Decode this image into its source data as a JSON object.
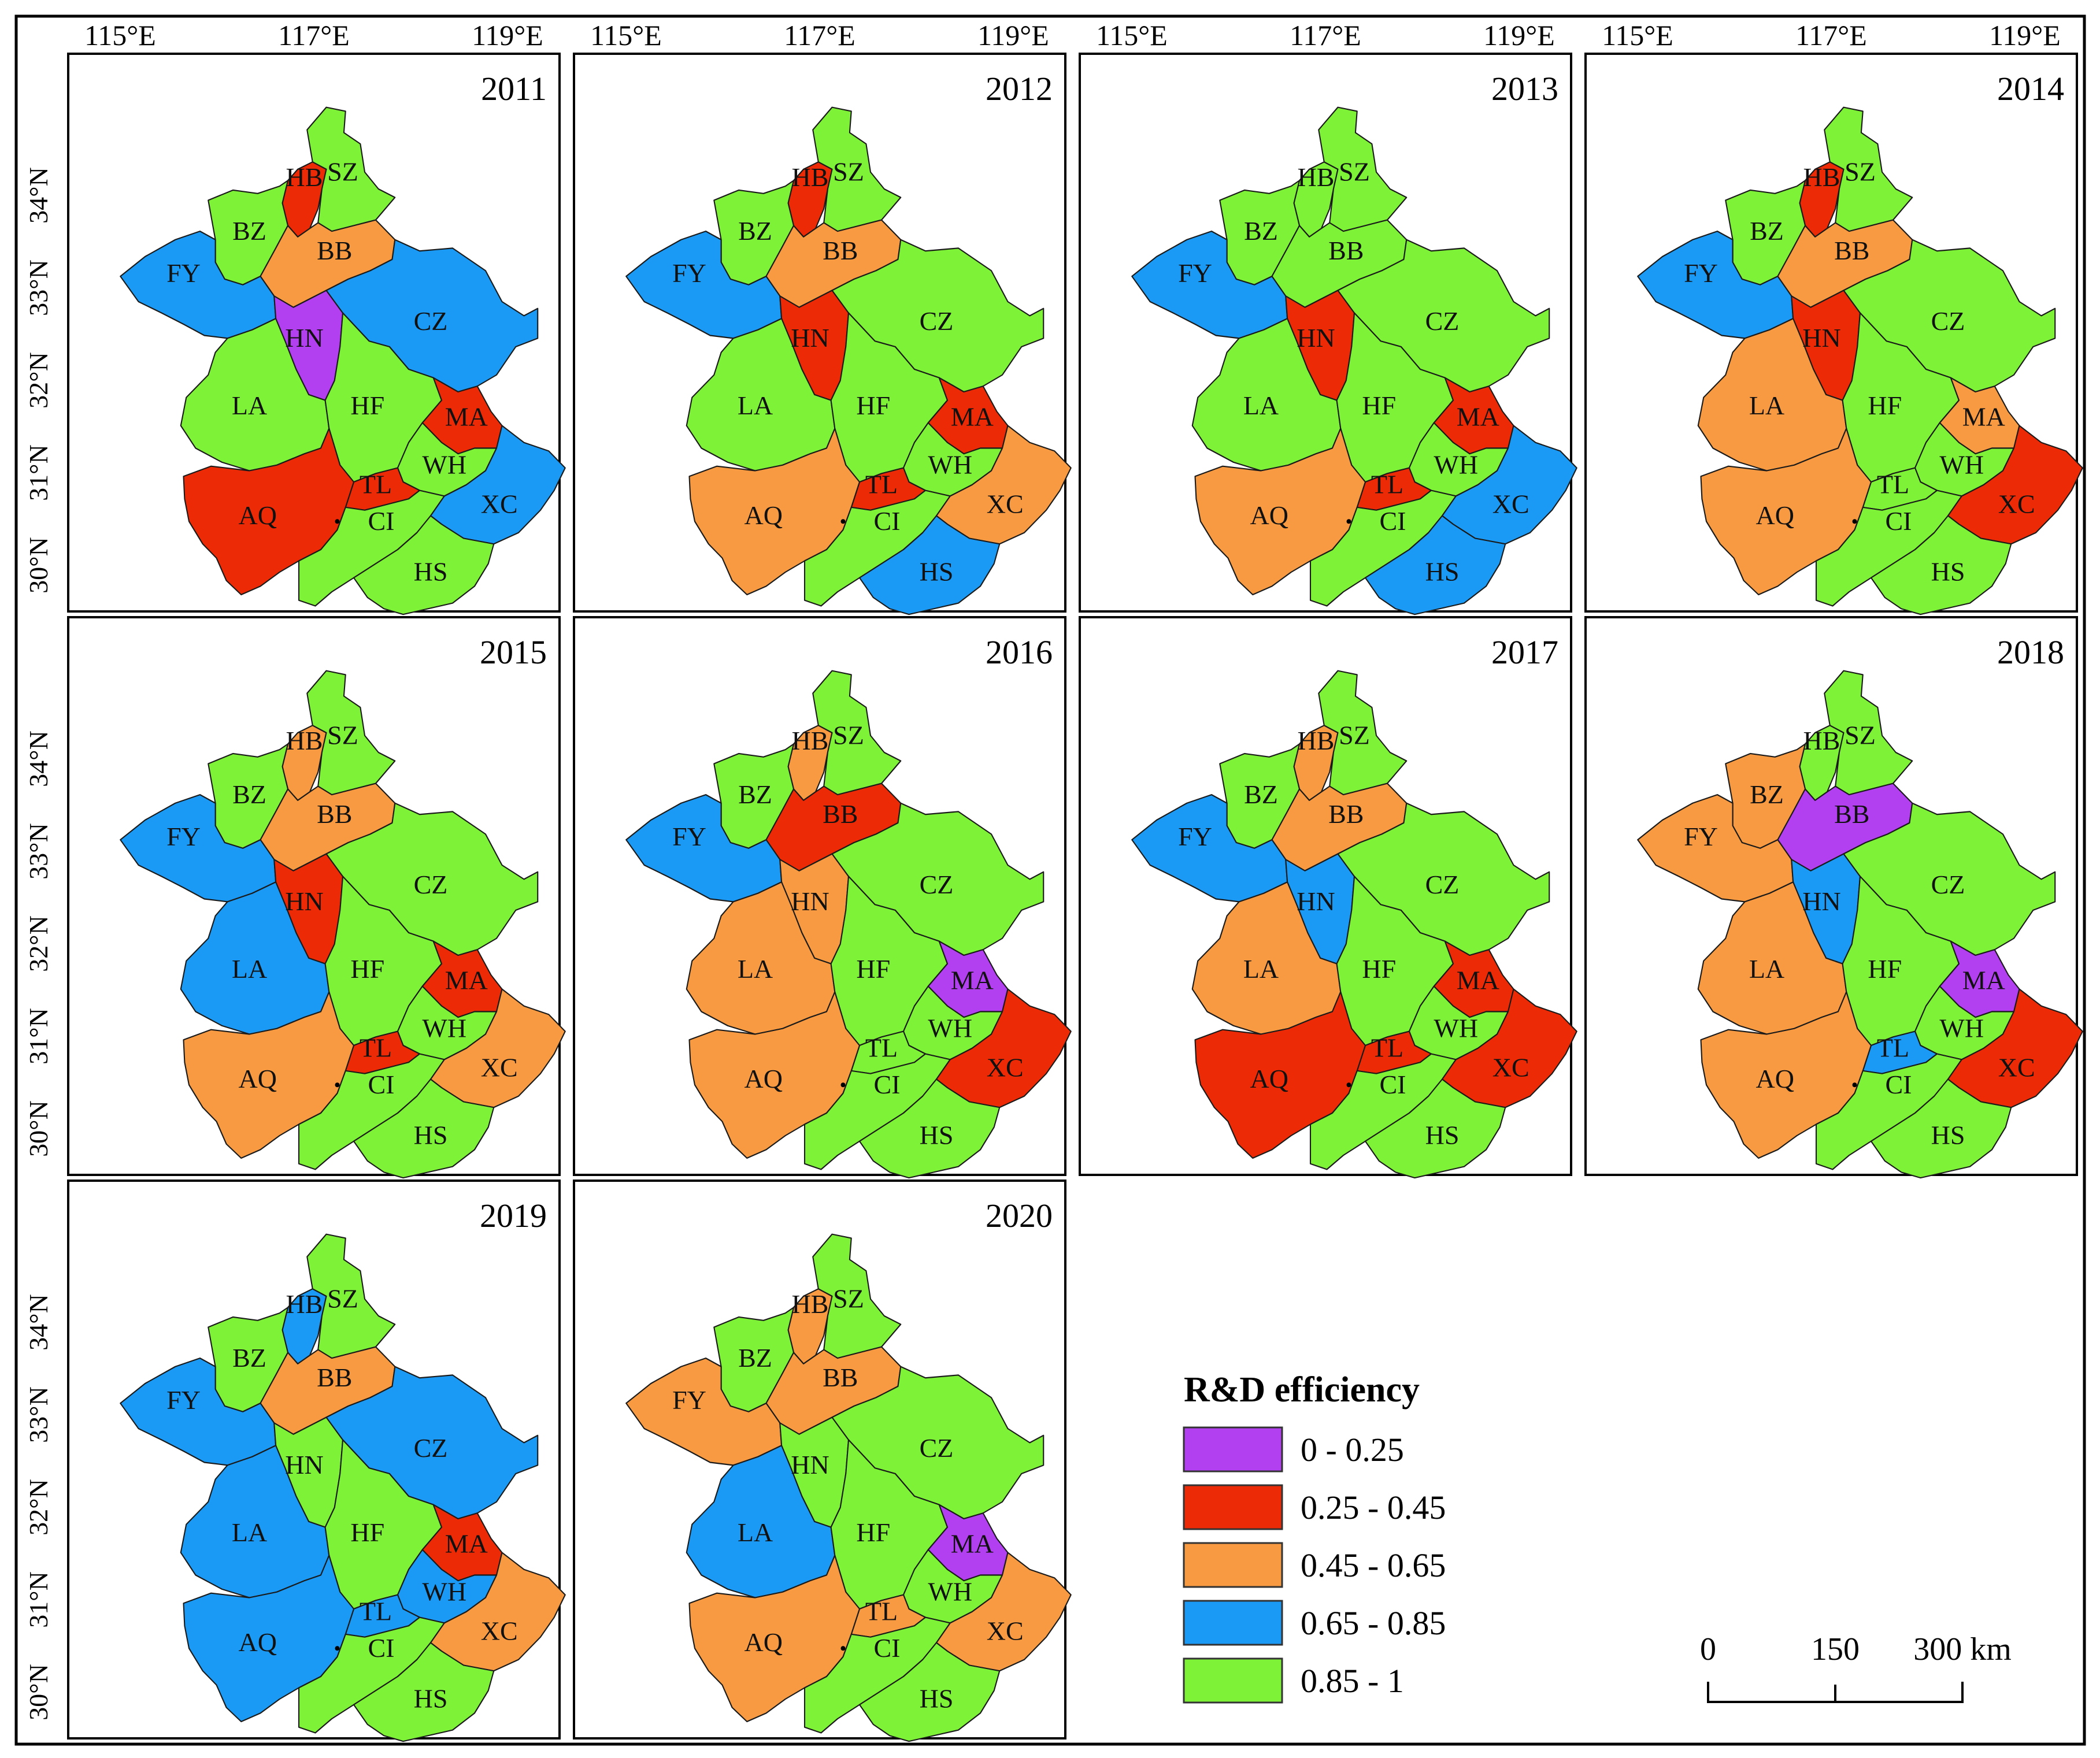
{
  "figure": {
    "legend": {
      "title": "R&D efficiency",
      "classes": [
        {
          "label": "0 - 0.25",
          "color": "#b23ff0"
        },
        {
          "label": "0.25 - 0.45",
          "color": "#ec2b06"
        },
        {
          "label": "0.45 - 0.65",
          "color": "#f79a41"
        },
        {
          "label": "0.65 - 0.85",
          "color": "#1b9af5"
        },
        {
          "label": "0.85 - 1",
          "color": "#7df236"
        }
      ]
    },
    "scalebar": {
      "ticks": [
        "0",
        "150",
        "300 km"
      ]
    },
    "lon_labels": [
      "115°E",
      "117°E",
      "119°E"
    ],
    "lat_labels": [
      "34°N",
      "33°N",
      "32°N",
      "31°N",
      "30°N"
    ],
    "cities": [
      "HB",
      "SZ",
      "BZ",
      "BB",
      "FY",
      "HN",
      "CZ",
      "LA",
      "HF",
      "MA",
      "WH",
      "TL",
      "AQ",
      "CI",
      "XC",
      "HS"
    ],
    "maps": [
      {
        "year": "2011",
        "classes": {
          "HB": 1,
          "SZ": 4,
          "BZ": 4,
          "BB": 2,
          "FY": 3,
          "HN": 0,
          "CZ": 3,
          "LA": 4,
          "HF": 4,
          "MA": 1,
          "WH": 4,
          "TL": 1,
          "AQ": 1,
          "CI": 4,
          "XC": 3,
          "HS": 4
        }
      },
      {
        "year": "2012",
        "classes": {
          "HB": 1,
          "SZ": 4,
          "BZ": 4,
          "BB": 2,
          "FY": 3,
          "HN": 1,
          "CZ": 4,
          "LA": 4,
          "HF": 4,
          "MA": 1,
          "WH": 4,
          "TL": 1,
          "AQ": 2,
          "CI": 4,
          "XC": 2,
          "HS": 3
        }
      },
      {
        "year": "2013",
        "classes": {
          "HB": 4,
          "SZ": 4,
          "BZ": 4,
          "BB": 4,
          "FY": 3,
          "HN": 1,
          "CZ": 4,
          "LA": 4,
          "HF": 4,
          "MA": 1,
          "WH": 4,
          "TL": 1,
          "AQ": 2,
          "CI": 4,
          "XC": 3,
          "HS": 3
        }
      },
      {
        "year": "2014",
        "classes": {
          "HB": 1,
          "SZ": 4,
          "BZ": 4,
          "BB": 2,
          "FY": 3,
          "HN": 1,
          "CZ": 4,
          "LA": 2,
          "HF": 4,
          "MA": 2,
          "WH": 4,
          "TL": 4,
          "AQ": 2,
          "CI": 4,
          "XC": 1,
          "HS": 4
        }
      },
      {
        "year": "2015",
        "classes": {
          "HB": 2,
          "SZ": 4,
          "BZ": 4,
          "BB": 2,
          "FY": 3,
          "HN": 1,
          "CZ": 4,
          "LA": 3,
          "HF": 4,
          "MA": 1,
          "WH": 4,
          "TL": 1,
          "AQ": 2,
          "CI": 4,
          "XC": 2,
          "HS": 4
        }
      },
      {
        "year": "2016",
        "classes": {
          "HB": 2,
          "SZ": 4,
          "BZ": 4,
          "BB": 1,
          "FY": 3,
          "HN": 2,
          "CZ": 4,
          "LA": 2,
          "HF": 4,
          "MA": 0,
          "WH": 4,
          "TL": 4,
          "AQ": 2,
          "CI": 4,
          "XC": 1,
          "HS": 4
        }
      },
      {
        "year": "2017",
        "classes": {
          "HB": 2,
          "SZ": 4,
          "BZ": 4,
          "BB": 2,
          "FY": 3,
          "HN": 3,
          "CZ": 4,
          "LA": 2,
          "HF": 4,
          "MA": 1,
          "WH": 4,
          "TL": 1,
          "AQ": 1,
          "CI": 4,
          "XC": 1,
          "HS": 4
        }
      },
      {
        "year": "2018",
        "classes": {
          "HB": 4,
          "SZ": 4,
          "BZ": 2,
          "BB": 0,
          "FY": 2,
          "HN": 3,
          "CZ": 4,
          "LA": 2,
          "HF": 4,
          "MA": 0,
          "WH": 4,
          "TL": 3,
          "AQ": 2,
          "CI": 4,
          "XC": 1,
          "HS": 4
        }
      },
      {
        "year": "2019",
        "classes": {
          "HB": 3,
          "SZ": 4,
          "BZ": 4,
          "BB": 2,
          "FY": 3,
          "HN": 4,
          "CZ": 3,
          "LA": 3,
          "HF": 4,
          "MA": 1,
          "WH": 3,
          "TL": 3,
          "AQ": 3,
          "CI": 4,
          "XC": 2,
          "HS": 4
        }
      },
      {
        "year": "2020",
        "classes": {
          "HB": 2,
          "SZ": 4,
          "BZ": 4,
          "BB": 2,
          "FY": 2,
          "HN": 4,
          "CZ": 4,
          "LA": 3,
          "HF": 4,
          "MA": 0,
          "WH": 4,
          "TL": 2,
          "AQ": 2,
          "CI": 4,
          "XC": 2,
          "HS": 4
        }
      }
    ]
  }
}
